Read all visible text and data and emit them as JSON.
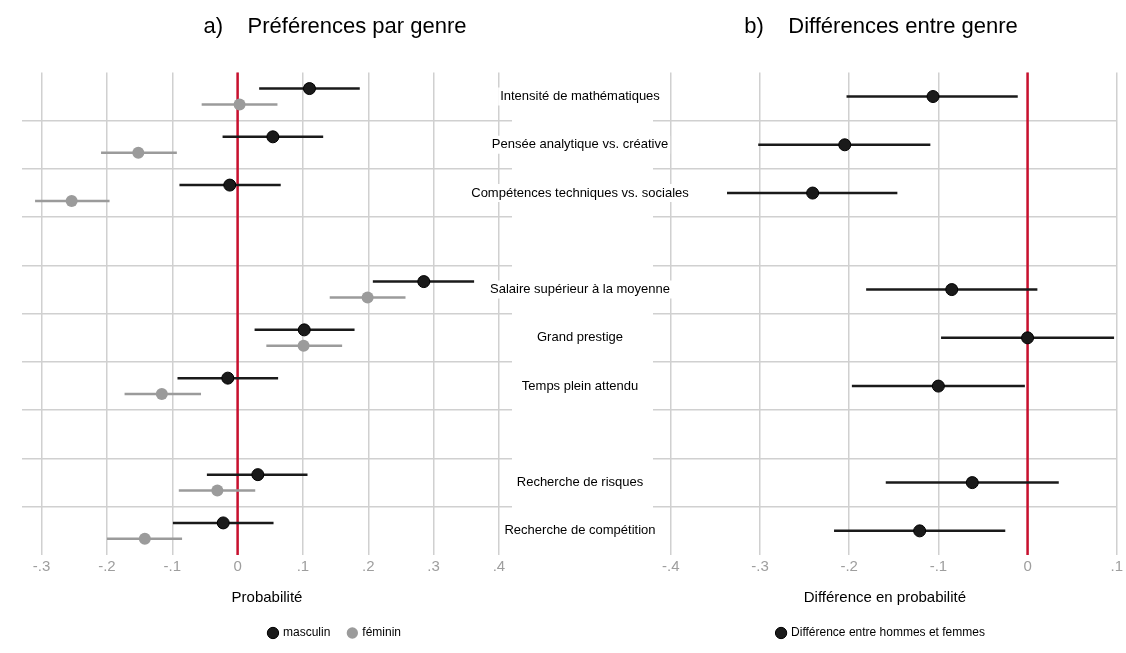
{
  "chart_data": [
    {
      "type": "scatter",
      "orientation": "horizontal",
      "title": "a)    Préférences par genre",
      "xlabel": "Probabilité",
      "categories": [
        "Intensité de mathématiques",
        "Pensée analytique vs. créative",
        "Compétences techniques vs. sociales",
        null,
        "Salaire supérieur à la moyenne",
        "Grand prestige",
        "Temps plein attendu",
        null,
        "Recherche de risques",
        "Recherche de compétition"
      ],
      "series": [
        {
          "name": "masculin",
          "color": "#1a1a1a",
          "values": [
            0.11,
            0.054,
            -0.012,
            null,
            0.285,
            0.102,
            -0.015,
            null,
            0.031,
            -0.022
          ],
          "errors": [
            [
              0.033,
              0.187
            ],
            [
              -0.023,
              0.131
            ],
            [
              -0.089,
              0.066
            ],
            null,
            [
              0.207,
              0.362
            ],
            [
              0.026,
              0.179
            ],
            [
              -0.092,
              0.062
            ],
            null,
            [
              -0.047,
              0.107
            ],
            [
              -0.099,
              0.055
            ]
          ]
        },
        {
          "name": "féminin",
          "color": "#9b9b9b",
          "values": [
            0.003,
            -0.152,
            -0.254,
            null,
            0.199,
            0.101,
            -0.116,
            null,
            -0.031,
            -0.142
          ],
          "errors": [
            [
              -0.055,
              0.061
            ],
            [
              -0.209,
              -0.093
            ],
            [
              -0.31,
              -0.196
            ],
            null,
            [
              0.141,
              0.257
            ],
            [
              0.044,
              0.16
            ],
            [
              -0.173,
              -0.056
            ],
            null,
            [
              -0.09,
              0.027
            ],
            [
              -0.2,
              -0.085
            ]
          ]
        }
      ],
      "xlim": [
        -0.33,
        0.42
      ],
      "xticks": [
        {
          "value": -0.3,
          "label": "-.3"
        },
        {
          "value": -0.2,
          "label": "-.2"
        },
        {
          "value": -0.1,
          "label": "-.1"
        },
        0,
        {
          "value": 0.1,
          "label": ".1"
        },
        {
          "value": 0.2,
          "label": ".2"
        },
        {
          "value": 0.3,
          "label": ".3"
        },
        {
          "value": 0.4,
          "label": ".4"
        }
      ],
      "ref_lines": [
        {
          "axis": "x",
          "value": 0,
          "color": "#c8102e"
        }
      ],
      "grid": true,
      "legend": "bottom",
      "marker": "circle"
    },
    {
      "type": "scatter",
      "orientation": "horizontal",
      "title": "b)    Différences entre genre",
      "xlabel": "Différence en probabilité",
      "categories": [
        null,
        null,
        null,
        null,
        null,
        null,
        null,
        null,
        null,
        null
      ],
      "series": [
        {
          "name": "Différence entre hommes et femmes",
          "color": "#1a1a1a",
          "values": [
            -0.106,
            -0.205,
            -0.241,
            null,
            -0.085,
            0.0,
            -0.1,
            null,
            -0.062,
            -0.121
          ],
          "errors": [
            [
              -0.203,
              -0.011
            ],
            [
              -0.302,
              -0.109
            ],
            [
              -0.337,
              -0.146
            ],
            null,
            [
              -0.181,
              0.011
            ],
            [
              -0.097,
              0.097
            ],
            [
              -0.197,
              -0.003
            ],
            null,
            [
              -0.159,
              0.035
            ],
            [
              -0.217,
              -0.025
            ]
          ]
        }
      ],
      "xlim": [
        -0.42,
        0.1
      ],
      "xticks": [
        {
          "value": -0.4,
          "label": "-.4"
        },
        {
          "value": -0.3,
          "label": "-.3"
        },
        {
          "value": -0.2,
          "label": "-.2"
        },
        {
          "value": -0.1,
          "label": "-.1"
        },
        0,
        {
          "value": 0.1,
          "label": ".1"
        }
      ],
      "ref_lines": [
        {
          "axis": "x",
          "value": 0,
          "color": "#c8102e"
        }
      ],
      "grid": true,
      "legend": "bottom",
      "marker": "circle",
      "tick_labels": "x"
    }
  ]
}
